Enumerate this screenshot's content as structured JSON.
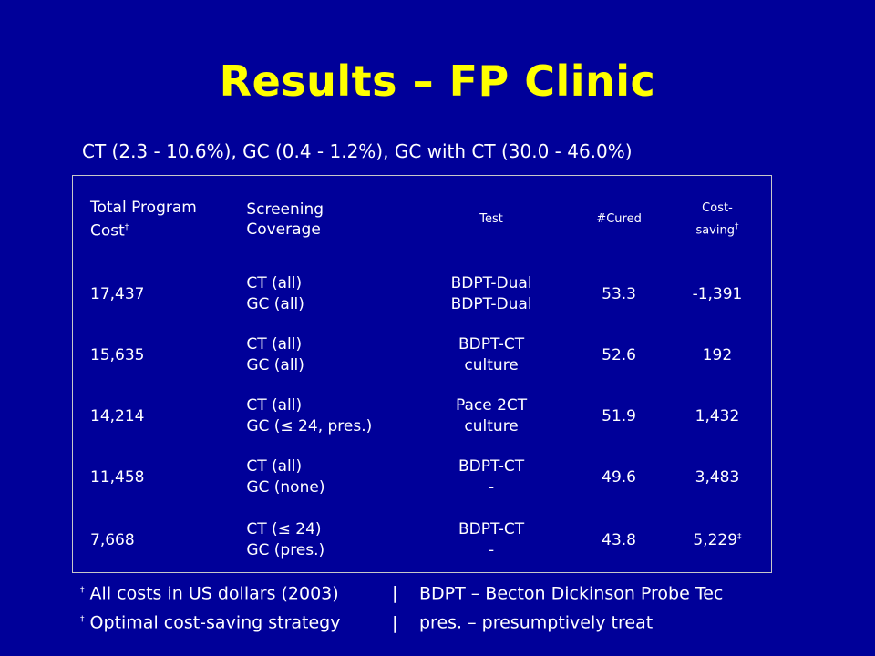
{
  "title": "Results – FP Clinic",
  "subtitle": "CT (2.3 - 10.6%), GC (0.4 - 1.2%), GC with CT (30.0 - 46.0%)",
  "table": {
    "headers": {
      "total_cost": [
        "Total Program",
        "Cost"
      ],
      "total_cost_mark": "†",
      "coverage": [
        "Screening",
        "Coverage"
      ],
      "test": "Test",
      "cured": "#Cured",
      "cost_saving": [
        "Cost-",
        "saving"
      ],
      "cost_saving_mark": "†"
    },
    "rows": [
      {
        "total_cost": "17,437",
        "coverage": [
          "CT (all)",
          "GC (all)"
        ],
        "test": [
          "BDPT-Dual",
          "BDPT-Dual"
        ],
        "cured": "53.3",
        "cost_saving": "-1,391",
        "mark": ""
      },
      {
        "total_cost": "15,635",
        "coverage": [
          "CT (all)",
          "GC (all)"
        ],
        "test": [
          "BDPT-CT",
          "culture"
        ],
        "cured": "52.6",
        "cost_saving": "192",
        "mark": ""
      },
      {
        "total_cost": "14,214",
        "coverage": [
          "CT (all)",
          "GC (≤ 24, pres.)"
        ],
        "test": [
          "Pace 2CT",
          "culture"
        ],
        "cured": "51.9",
        "cost_saving": "1,432",
        "mark": ""
      },
      {
        "total_cost": "11,458",
        "coverage": [
          "CT (all)",
          "GC (none)"
        ],
        "test": [
          "BDPT-CT",
          "-"
        ],
        "cured": "49.6",
        "cost_saving": "3,483",
        "mark": ""
      },
      {
        "total_cost": "7,668",
        "coverage": [
          "CT (≤ 24)",
          "GC (pres.)"
        ],
        "test": [
          "BDPT-CT",
          "-"
        ],
        "cured": "43.8",
        "cost_saving": "5,229",
        "mark": "‡"
      }
    ]
  },
  "footer": {
    "line1": {
      "mark": "†",
      "left": "All costs in US dollars (2003)",
      "sep": "|",
      "right": "BDPT – Becton Dickinson Probe Tec"
    },
    "line2": {
      "mark": "‡",
      "left": "Optimal cost-saving strategy",
      "sep": "|",
      "right": "pres. – presumptively treat"
    }
  }
}
